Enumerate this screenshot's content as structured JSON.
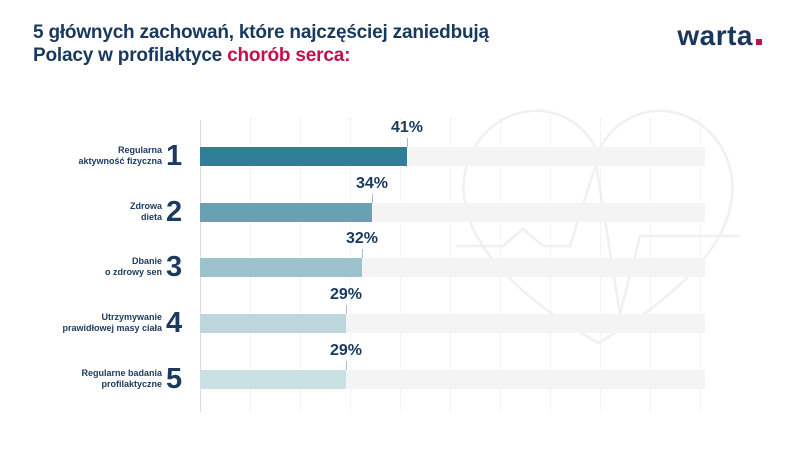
{
  "title": {
    "line1": "5 głównych zachowań, które najczęściej zaniedbują",
    "line2_prefix": "Polacy w profilaktyce ",
    "line2_accent": "chorób serca:"
  },
  "logo": {
    "text": "warta"
  },
  "colors": {
    "navy": "#17395f",
    "accent_red": "#c50e4c",
    "bar_colors": [
      "#2e7e98",
      "#68a2b2",
      "#9cc3cd",
      "#bcd6dc",
      "#c9e0e4"
    ],
    "track": "#f4f4f5",
    "gridline": "#e7eaec",
    "watermark": "#f0f0f2"
  },
  "chart_data": {
    "type": "bar",
    "orientation": "horizontal",
    "title": "5 głównych zachowań, które najczęściej zaniedbują Polacy w profilaktyce chorób serca:",
    "categories": [
      "Regularna aktywność fizyczna",
      "Zdrowa dieta",
      "Dbanie o zdrowy sen",
      "Utrzymywanie prawidłowej masy ciała",
      "Regularne badania profilaktyczne"
    ],
    "categories_lines": [
      [
        "Regularna",
        "aktywność fizyczna"
      ],
      [
        "Zdrowa",
        "dieta"
      ],
      [
        "Dbanie",
        "o zdrowy sen"
      ],
      [
        "Utrzymywanie",
        "prawidłowej masy ciała"
      ],
      [
        "Regularne badania",
        "profilaktyczne"
      ]
    ],
    "ranks": [
      "1",
      "2",
      "3",
      "4",
      "5"
    ],
    "values": [
      41,
      34,
      32,
      29,
      29
    ],
    "value_labels": [
      "41%",
      "34%",
      "32%",
      "29%",
      "29%"
    ],
    "xlabel": "",
    "ylabel": "",
    "xlim": [
      0,
      100
    ],
    "grid": "vertical-dotted",
    "legend": "none"
  }
}
